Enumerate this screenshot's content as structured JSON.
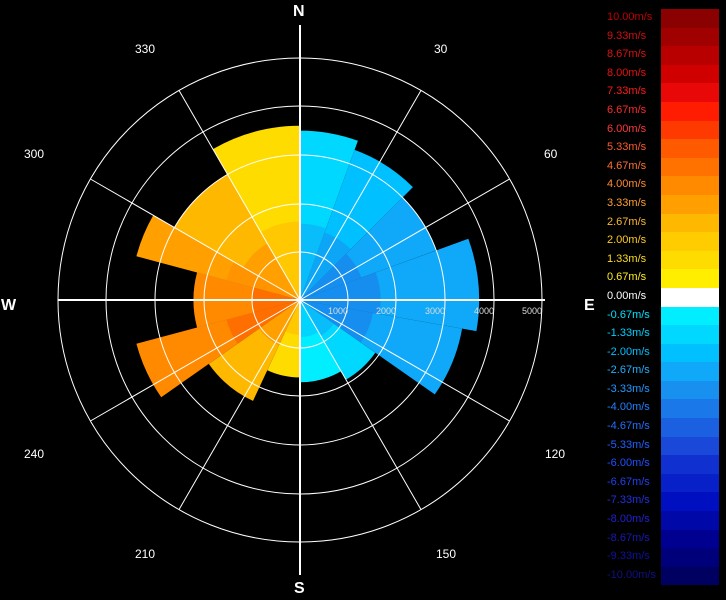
{
  "chart_data": {
    "type": "polar-heatmap",
    "title": "",
    "compass": {
      "north": "N",
      "south": "S",
      "east": "E",
      "west": "W"
    },
    "azimuth_labels": [
      "30",
      "60",
      "120",
      "150",
      "210",
      "240",
      "300",
      "330"
    ],
    "range_labels": [
      "1000",
      "2000",
      "3000",
      "4000",
      "5000"
    ],
    "range_max": 5000,
    "colorbar": {
      "unit": "m/s",
      "entries": [
        {
          "label": "10.00m/s",
          "color": "#8b0000",
          "text_color": "#c00000"
        },
        {
          "label": "9.33m/s",
          "color": "#a00000",
          "text_color": "#d01010"
        },
        {
          "label": "8.67m/s",
          "color": "#b80000",
          "text_color": "#e01010"
        },
        {
          "label": "8.00m/s",
          "color": "#d00000",
          "text_color": "#e81010"
        },
        {
          "label": "7.33m/s",
          "color": "#e80808",
          "text_color": "#ff1a1a"
        },
        {
          "label": "6.67m/s",
          "color": "#ff1c00",
          "text_color": "#ff2a2a"
        },
        {
          "label": "6.00m/s",
          "color": "#ff3a00",
          "text_color": "#ff3a3a"
        },
        {
          "label": "5.33m/s",
          "color": "#ff5a00",
          "text_color": "#ff5a2a"
        },
        {
          "label": "4.67m/s",
          "color": "#ff7200",
          "text_color": "#ff7030"
        },
        {
          "label": "4.00m/s",
          "color": "#ff8a00",
          "text_color": "#ff8a30"
        },
        {
          "label": "3.33m/s",
          "color": "#ffa000",
          "text_color": "#ffa030"
        },
        {
          "label": "2.67m/s",
          "color": "#ffb800",
          "text_color": "#ffb830"
        },
        {
          "label": "2.00m/s",
          "color": "#ffcc00",
          "text_color": "#ffcc20"
        },
        {
          "label": "1.33m/s",
          "color": "#ffdc00",
          "text_color": "#ffdc20"
        },
        {
          "label": "0.67m/s",
          "color": "#ffee00",
          "text_color": "#ffee20"
        },
        {
          "label": "0.00m/s",
          "color": "#ffffff",
          "text_color": "#ffffff"
        },
        {
          "label": "-0.67m/s",
          "color": "#00eeff",
          "text_color": "#00e0ff"
        },
        {
          "label": "-1.33m/s",
          "color": "#00d8ff",
          "text_color": "#00d0ff"
        },
        {
          "label": "-2.00m/s",
          "color": "#00c0ff",
          "text_color": "#00c0ff"
        },
        {
          "label": "-2.67m/s",
          "color": "#10a8f8",
          "text_color": "#20b0ff"
        },
        {
          "label": "-3.33m/s",
          "color": "#1890f0",
          "text_color": "#2098ff"
        },
        {
          "label": "-4.00m/s",
          "color": "#1a78e8",
          "text_color": "#2080ff"
        },
        {
          "label": "-4.67m/s",
          "color": "#1a60e0",
          "text_color": "#2070ff"
        },
        {
          "label": "-5.33m/s",
          "color": "#1a48d8",
          "text_color": "#2060ff"
        },
        {
          "label": "-6.00m/s",
          "color": "#1030d0",
          "text_color": "#2050ff"
        },
        {
          "label": "-6.67m/s",
          "color": "#0820c8",
          "text_color": "#2040f0"
        },
        {
          "label": "-7.33m/s",
          "color": "#0010c0",
          "text_color": "#2030e0"
        },
        {
          "label": "-8.00m/s",
          "color": "#0008a8",
          "text_color": "#2020d0"
        },
        {
          "label": "-8.67m/s",
          "color": "#000090",
          "text_color": "#1818b8"
        },
        {
          "label": "-9.33m/s",
          "color": "#00007a",
          "text_color": "#1010a0"
        },
        {
          "label": "-10.00m/s",
          "color": "#000060",
          "text_color": "#101088"
        }
      ]
    },
    "sectors": [
      {
        "from_deg": 0,
        "to_deg": 20,
        "range": 3500,
        "velocity": -1.5
      },
      {
        "from_deg": 20,
        "to_deg": 45,
        "range": 3300,
        "velocity": -2.0
      },
      {
        "from_deg": 45,
        "to_deg": 70,
        "range": 3000,
        "velocity": -2.5
      },
      {
        "from_deg": 70,
        "to_deg": 100,
        "range": 3700,
        "velocity": -3.0
      },
      {
        "from_deg": 100,
        "to_deg": 125,
        "range": 3400,
        "velocity": -2.5
      },
      {
        "from_deg": 125,
        "to_deg": 150,
        "range": 1900,
        "velocity": -1.5
      },
      {
        "from_deg": 150,
        "to_deg": 180,
        "range": 1700,
        "velocity": -0.8
      },
      {
        "from_deg": 180,
        "to_deg": 205,
        "range": 1600,
        "velocity": 1.3
      },
      {
        "from_deg": 205,
        "to_deg": 235,
        "range": 2300,
        "velocity": 2.5
      },
      {
        "from_deg": 235,
        "to_deg": 255,
        "range": 3500,
        "velocity": 3.8
      },
      {
        "from_deg": 255,
        "to_deg": 285,
        "range": 2200,
        "velocity": 4.0
      },
      {
        "from_deg": 285,
        "to_deg": 300,
        "range": 3500,
        "velocity": 3.0
      },
      {
        "from_deg": 300,
        "to_deg": 330,
        "range": 3000,
        "velocity": 2.5
      },
      {
        "from_deg": 330,
        "to_deg": 360,
        "range": 3600,
        "velocity": 1.5
      }
    ]
  }
}
